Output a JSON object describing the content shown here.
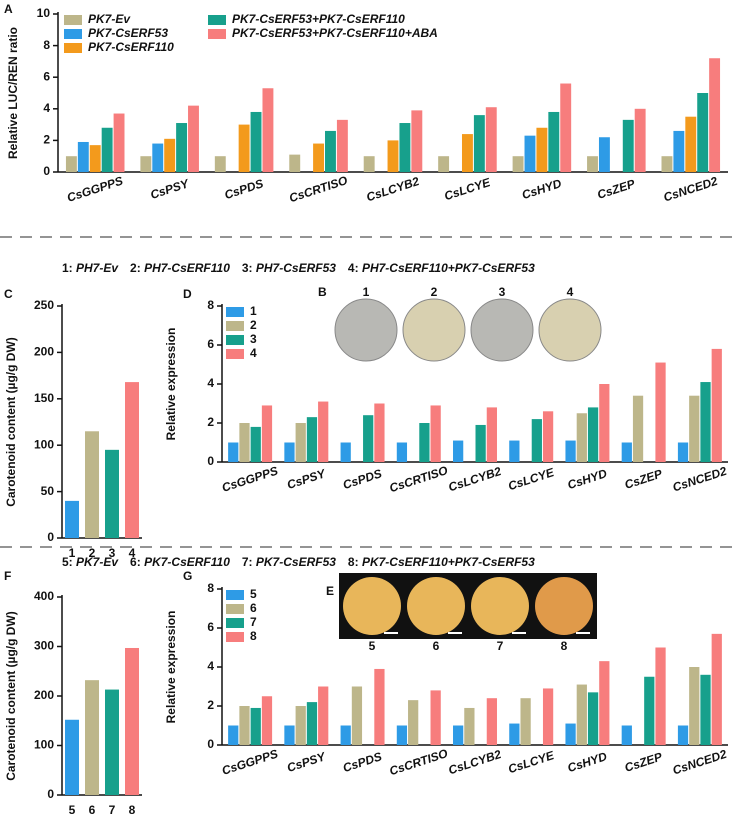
{
  "captions": {
    "row2": [
      "1: ",
      "PH7-Ev",
      "2: ",
      "PH7-CsERF110",
      "3: ",
      "PH7-CsERF53",
      "4: ",
      "PH7-CsERF110+PK7-CsERF53"
    ],
    "row3": [
      "5: ",
      "PK7-Ev",
      "6: ",
      "PK7-CsERF110",
      "7: ",
      "PK7-CsERF53",
      "8: ",
      "PK7-CsERF110+PK7-CsERF53"
    ]
  },
  "images": {
    "B": {
      "label": "B",
      "items": [
        "1",
        "2",
        "3",
        "4"
      ]
    },
    "E": {
      "label": "E",
      "items": [
        "5",
        "6",
        "7",
        "8"
      ]
    }
  },
  "chart_data": [
    {
      "type": "grouped_bar",
      "panel_label": "A",
      "y_label": "Relative LUC/REN ratio",
      "ylim": [
        0,
        10
      ],
      "yticks": [
        0,
        2,
        4,
        6,
        8,
        10
      ],
      "categories": [
        "CsGGPPS",
        "CsPSY",
        "CsPDS",
        "CsCRTISO",
        "CsLCYB2",
        "CsLCYE",
        "CsHYD",
        "CsZEP",
        "CsNCED2"
      ],
      "series": [
        {
          "name": "PK7-Ev",
          "color": "#bdb68a",
          "values": [
            1.0,
            1.0,
            1.0,
            1.1,
            1.0,
            1.0,
            1.0,
            1.0,
            1.0
          ]
        },
        {
          "name": "PK7-CsERF53",
          "color": "#2e9be6",
          "values": [
            1.9,
            1.8,
            null,
            null,
            null,
            null,
            2.3,
            2.2,
            2.6
          ]
        },
        {
          "name": "PK7-CsERF110",
          "color": "#f39a1c",
          "values": [
            1.7,
            2.1,
            3.0,
            1.8,
            2.0,
            2.4,
            2.8,
            null,
            3.5
          ]
        },
        {
          "name": "PK7-CsERF53+PK7-CsERF110",
          "color": "#17a08c",
          "values": [
            2.8,
            3.1,
            3.8,
            2.6,
            3.1,
            3.6,
            3.8,
            3.3,
            5.0
          ]
        },
        {
          "name": "PK7-CsERF53+PK7-CsERF110+ABA",
          "color": "#f77d7d",
          "values": [
            3.7,
            4.2,
            5.3,
            3.3,
            3.9,
            4.1,
            5.6,
            4.0,
            7.2
          ]
        }
      ]
    },
    {
      "type": "bar",
      "panel_label": "C",
      "y_label": "Carotenoid content (µg/g DW)",
      "ylim": [
        0,
        250
      ],
      "yticks": [
        0,
        50,
        100,
        150,
        200,
        250
      ],
      "categories": [
        "1",
        "2",
        "3",
        "4"
      ],
      "values": [
        40,
        115,
        95,
        168
      ],
      "colors": [
        "#2e9be6",
        "#bdb68a",
        "#17a08c",
        "#f77d7d"
      ]
    },
    {
      "type": "grouped_bar",
      "panel_label": "D",
      "y_label": "Relative expression",
      "ylim": [
        0,
        8
      ],
      "yticks": [
        0,
        2,
        4,
        6,
        8
      ],
      "categories": [
        "CsGGPPS",
        "CsPSY",
        "CsPDS",
        "CsCRTISO",
        "CsLCYB2",
        "CsLCYE",
        "CsHYD",
        "CsZEP",
        "CsNCED2"
      ],
      "series": [
        {
          "name": "1",
          "color": "#2e9be6",
          "values": [
            1.0,
            1.0,
            1.0,
            1.0,
            1.1,
            1.1,
            1.1,
            1.0,
            1.0
          ]
        },
        {
          "name": "2",
          "color": "#bdb68a",
          "values": [
            2.0,
            2.0,
            null,
            null,
            null,
            null,
            2.5,
            3.4,
            3.4
          ]
        },
        {
          "name": "3",
          "color": "#17a08c",
          "values": [
            1.8,
            2.3,
            2.4,
            2.0,
            1.9,
            2.2,
            2.8,
            null,
            4.1
          ]
        },
        {
          "name": "4",
          "color": "#f77d7d",
          "values": [
            2.9,
            3.1,
            3.0,
            2.9,
            2.8,
            2.6,
            4.0,
            5.1,
            5.8
          ]
        }
      ]
    },
    {
      "type": "bar",
      "panel_label": "F",
      "y_label": "Carotenoid content (µg/g DW)",
      "ylim": [
        0,
        400
      ],
      "yticks": [
        0,
        100,
        200,
        300,
        400
      ],
      "categories": [
        "5",
        "6",
        "7",
        "8"
      ],
      "values": [
        152,
        232,
        213,
        297
      ],
      "colors": [
        "#2e9be6",
        "#bdb68a",
        "#17a08c",
        "#f77d7d"
      ]
    },
    {
      "type": "grouped_bar",
      "panel_label": "G",
      "y_label": "Relative expression",
      "ylim": [
        0,
        8
      ],
      "yticks": [
        0,
        2,
        4,
        6,
        8
      ],
      "categories": [
        "CsGGPPS",
        "CsPSY",
        "CsPDS",
        "CsCRTISO",
        "CsLCYB2",
        "CsLCYE",
        "CsHYD",
        "CsZEP",
        "CsNCED2"
      ],
      "series": [
        {
          "name": "5",
          "color": "#2e9be6",
          "values": [
            1.0,
            1.0,
            1.0,
            1.0,
            1.0,
            1.1,
            1.1,
            1.0,
            1.0
          ]
        },
        {
          "name": "6",
          "color": "#bdb68a",
          "values": [
            2.0,
            2.0,
            3.0,
            2.3,
            1.9,
            2.4,
            3.1,
            null,
            4.0
          ]
        },
        {
          "name": "7",
          "color": "#17a08c",
          "values": [
            1.9,
            2.2,
            null,
            null,
            null,
            null,
            2.7,
            3.5,
            3.6
          ]
        },
        {
          "name": "8",
          "color": "#f77d7d",
          "values": [
            2.5,
            3.0,
            3.9,
            2.8,
            2.4,
            2.9,
            4.3,
            5.0,
            5.7
          ]
        }
      ]
    }
  ]
}
